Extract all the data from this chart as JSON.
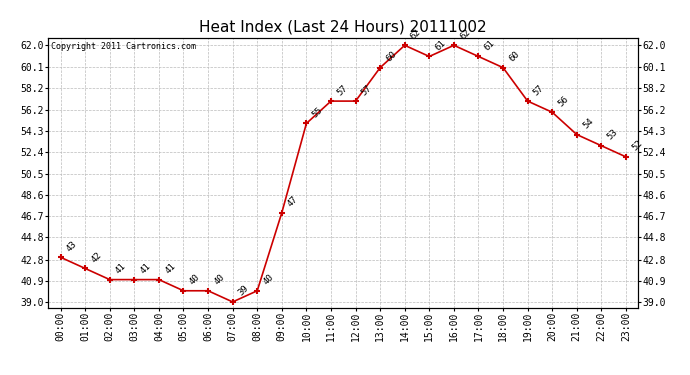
{
  "title": "Heat Index (Last 24 Hours) 20111002",
  "copyright": "Copyright 2011 Cartronics.com",
  "x_labels": [
    "00:00",
    "01:00",
    "02:00",
    "03:00",
    "04:00",
    "05:00",
    "06:00",
    "07:00",
    "08:00",
    "09:00",
    "10:00",
    "11:00",
    "12:00",
    "13:00",
    "14:00",
    "15:00",
    "16:00",
    "17:00",
    "18:00",
    "19:00",
    "20:00",
    "21:00",
    "22:00",
    "23:00"
  ],
  "x_values": [
    0,
    1,
    2,
    3,
    4,
    5,
    6,
    7,
    8,
    9,
    10,
    11,
    12,
    13,
    14,
    15,
    16,
    17,
    18,
    19,
    20,
    21,
    22,
    23
  ],
  "y_values": [
    43,
    42,
    41,
    41,
    41,
    40,
    40,
    39.0,
    40,
    47,
    55,
    57,
    57,
    60,
    62,
    61,
    62,
    61,
    60,
    57,
    56,
    54,
    53,
    52
  ],
  "y_ticks_left": [
    39.0,
    40.9,
    42.8,
    44.8,
    46.7,
    48.6,
    50.5,
    52.4,
    54.3,
    56.2,
    58.2,
    60.1,
    62.0
  ],
  "y_labels_left": [
    "39.0",
    "40.9",
    "42.8",
    "44.8",
    "46.7",
    "48.6",
    "50.5",
    "52.4",
    "54.3",
    "56.2",
    "58.2",
    "60.1",
    "62.0"
  ],
  "ylim": [
    38.5,
    62.7
  ],
  "line_color": "#cc0000",
  "bg_color": "#ffffff",
  "grid_color": "#bbbbbb",
  "title_fontsize": 11,
  "annotation_fontsize": 6.5,
  "tick_fontsize": 7,
  "copyright_fontsize": 6
}
